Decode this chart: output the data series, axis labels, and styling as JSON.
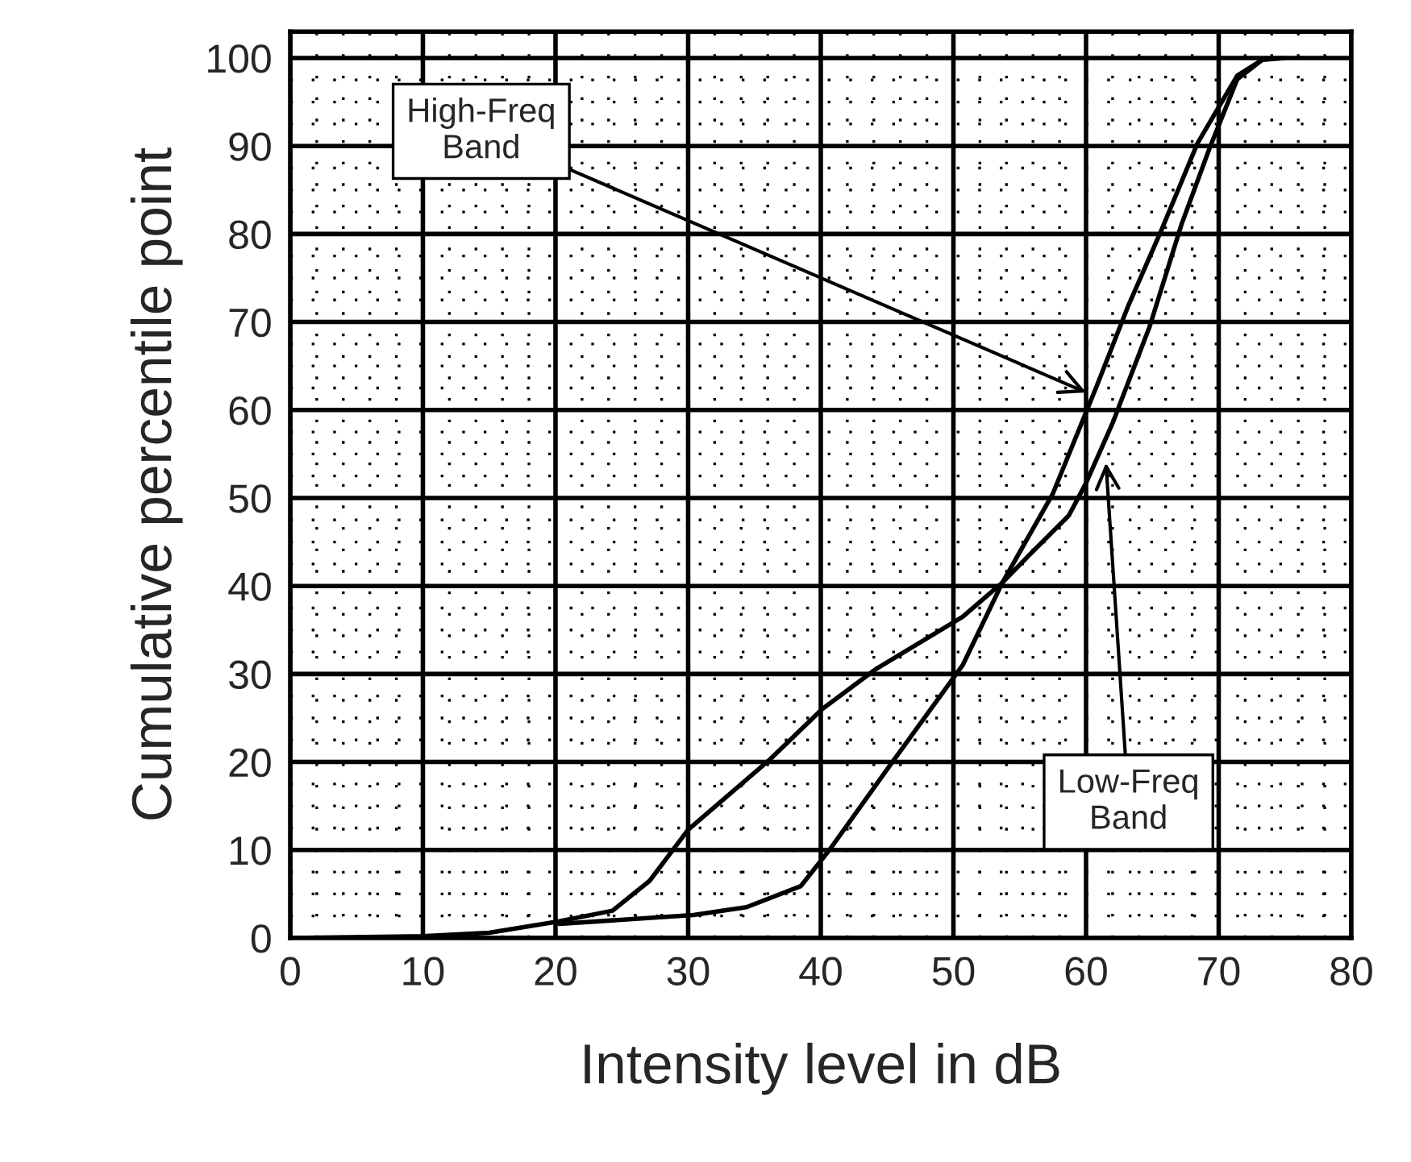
{
  "chart_data": {
    "type": "line",
    "xlabel": "Intensity level in dB",
    "ylabel": "Cumulative percentile point",
    "xlim": [
      0,
      80
    ],
    "ylim": [
      0,
      103
    ],
    "xticks": [
      0,
      10,
      20,
      30,
      40,
      50,
      60,
      70,
      80
    ],
    "yticks": [
      0,
      10,
      20,
      30,
      40,
      50,
      60,
      70,
      80,
      90,
      100
    ],
    "grid": true,
    "marker": "none",
    "line_style": "solid",
    "series": [
      {
        "color": "#000000",
        "x": [
          0,
          10,
          15,
          20.3,
          24.3,
          27.1,
          30,
          36.1,
          40.1,
          44.2,
          50.7,
          53.7,
          55.9,
          58.7,
          60,
          62,
          64.8,
          67.2,
          69.3,
          71.4,
          73.3,
          75
        ],
        "values": [
          0,
          0.2,
          0.6,
          1.9,
          3.1,
          6.5,
          12.3,
          20.2,
          26,
          30.6,
          36.5,
          40.4,
          43.8,
          48,
          51.7,
          58.5,
          69.5,
          81.1,
          89.7,
          97.6,
          99.8,
          100
        ]
      },
      {
        "color": "#000000",
        "x": [
          20.3,
          30.4,
          34.4,
          38.5,
          40.7,
          45.4,
          50.7,
          53.7,
          57.5,
          60.8,
          63.2,
          65.7,
          68.4,
          71.4,
          73.3
        ],
        "values": [
          1.6,
          2.6,
          3.5,
          5.9,
          10.1,
          20,
          31,
          40.4,
          50.5,
          62.7,
          71.9,
          80.5,
          90.3,
          98,
          99.8
        ]
      }
    ],
    "annotations": [
      {
        "text": "High-Freq\nBand",
        "x": 60,
        "y": 62
      },
      {
        "text": "Low-Freq\nBand",
        "x": 61.5,
        "y": 54
      }
    ]
  }
}
